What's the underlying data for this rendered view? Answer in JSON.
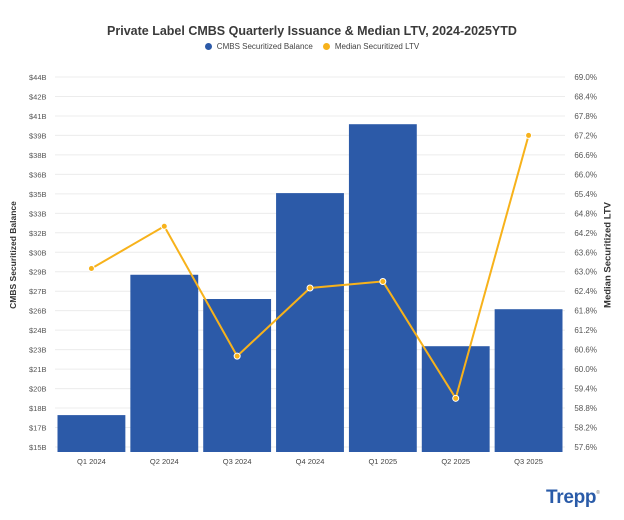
{
  "chart_data": {
    "type": "bar+line",
    "title": "Private Label CMBS Quarterly Issuance & Median LTV, 2024-2025YTD",
    "categories": [
      "Q1 2024",
      "Q2 2024",
      "Q3 2024",
      "Q4 2024",
      "Q1 2025",
      "Q2 2025",
      "Q3 2025"
    ],
    "series": [
      {
        "name": "CMBS Securitized Balance",
        "type": "bar",
        "axis": "left",
        "color": "#2c5aa8",
        "unit": "$B",
        "values": [
          17.5,
          28.5,
          26.6,
          34.9,
          40.3,
          22.9,
          25.8
        ]
      },
      {
        "name": "Median Securitized LTV",
        "type": "line",
        "axis": "right",
        "color": "#f7b21b",
        "unit": "%",
        "values": [
          63.1,
          64.4,
          60.4,
          62.5,
          62.7,
          59.1,
          67.2
        ]
      }
    ],
    "ylabel": "CMBS Securitized Balance",
    "y2label": "Median Securitized LTV",
    "ylim": [
      15,
      44
    ],
    "y2lim": [
      57.6,
      69.0
    ],
    "yticks": [
      "$15B",
      "$17B",
      "$18B",
      "$20B",
      "$21B",
      "$23B",
      "$24B",
      "$26B",
      "$27B",
      "$29B",
      "$30B",
      "$32B",
      "$33B",
      "$35B",
      "$36B",
      "$38B",
      "$39B",
      "$41B",
      "$42B",
      "$44B"
    ],
    "y2ticks": [
      "57.6%",
      "58.2%",
      "58.8%",
      "59.4%",
      "60.0%",
      "60.6%",
      "61.2%",
      "61.8%",
      "62.4%",
      "63.0%",
      "63.6%",
      "64.2%",
      "64.8%",
      "65.4%",
      "66.0%",
      "66.6%",
      "67.2%",
      "67.8%",
      "68.4%",
      "69.0%"
    ],
    "grid": true,
    "legend_position": "top"
  },
  "legend": {
    "bar_label": "CMBS Securitized Balance",
    "line_label": "Median Securitized LTV",
    "bar_color": "#2c5aa8",
    "line_color": "#f7b21b"
  },
  "brand": {
    "logo_text": "Trepp",
    "mark": "®"
  }
}
